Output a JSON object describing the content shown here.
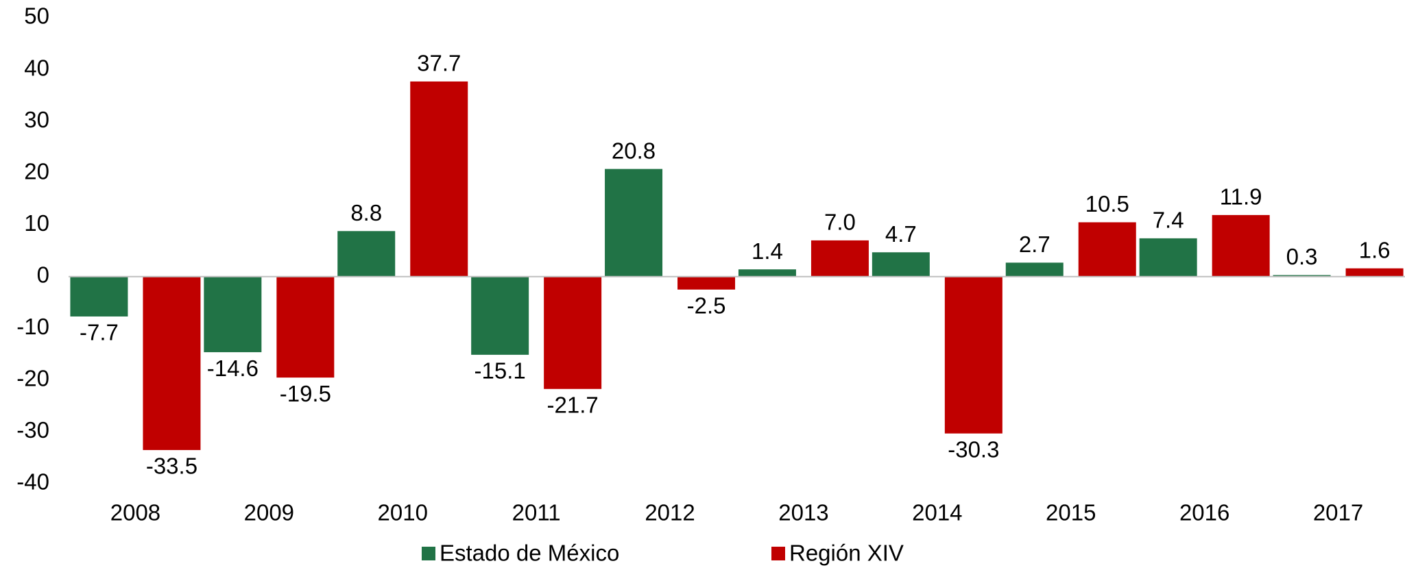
{
  "chart_data": {
    "type": "bar",
    "categories": [
      "2008",
      "2009",
      "2010",
      "2011",
      "2012",
      "2013",
      "2014",
      "2015",
      "2016",
      "2017"
    ],
    "series": [
      {
        "name": "Estado de México",
        "color": "#217346",
        "values": [
          -7.7,
          -14.6,
          8.8,
          -15.1,
          20.8,
          1.4,
          4.7,
          2.7,
          7.4,
          0.3
        ]
      },
      {
        "name": "Región XIV",
        "color": "#c00000",
        "values": [
          -33.5,
          -19.5,
          37.7,
          -21.7,
          -2.5,
          7.0,
          -30.3,
          10.5,
          11.9,
          1.6
        ],
        "value_labels": [
          "-33.5",
          "-19.5",
          "37.7",
          "-21.7",
          "-2.5",
          "7.0",
          "-30.3",
          "10.5",
          "11.9",
          "1.6"
        ]
      }
    ],
    "ylim": [
      -40,
      50
    ],
    "yticks": [
      -40,
      -30,
      -20,
      -10,
      0,
      10,
      20,
      30,
      40,
      50
    ],
    "grid": false,
    "legend": "bottom"
  }
}
